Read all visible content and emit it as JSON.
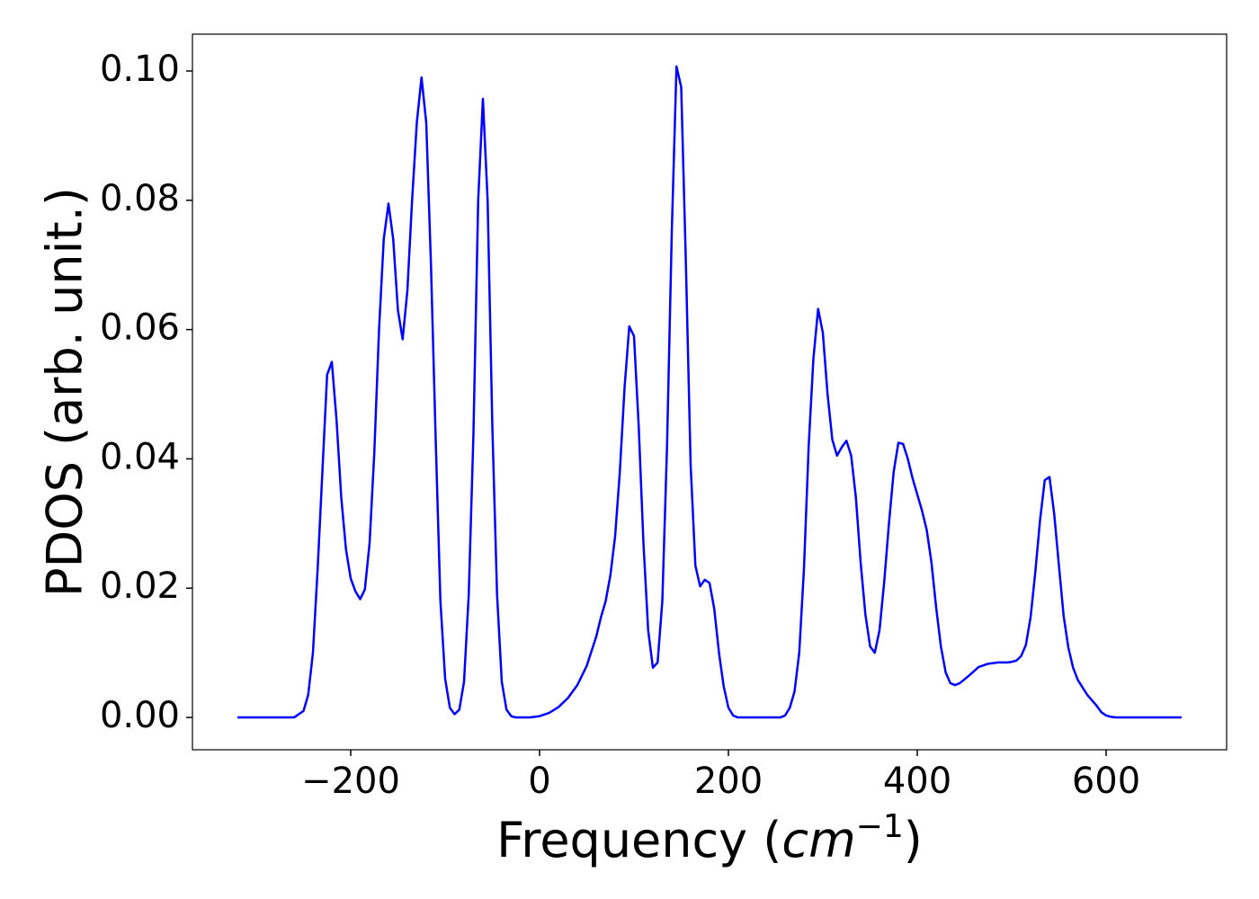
{
  "chart_data": {
    "type": "line",
    "ylabel": "PDOS (arb. unit.)",
    "xlabel": [
      "Frequency (",
      "cm",
      "−1",
      ")"
    ],
    "color": "#0000ff",
    "xlim": [
      -367.6,
      727.6
    ],
    "ylim": [
      -0.005,
      0.1057
    ],
    "xticks": [
      {
        "value": -200,
        "label": "−200"
      },
      0,
      200,
      400,
      600
    ],
    "yticks": [
      {
        "value": 0,
        "label": "0.00"
      },
      {
        "value": 0.02,
        "label": "0.02"
      },
      {
        "value": 0.04,
        "label": "0.04"
      },
      {
        "value": 0.06,
        "label": "0.06"
      },
      {
        "value": 0.08,
        "label": "0.08"
      },
      {
        "value": 0.1,
        "label": "0.10"
      }
    ],
    "x": [
      -320,
      -260,
      -255,
      -250,
      -245,
      -240,
      -235,
      -230,
      -225,
      -220,
      -215,
      -210,
      -205,
      -200,
      -195,
      -190,
      -185,
      -180,
      -175,
      -170,
      -165,
      -160,
      -155,
      -150,
      -145,
      -140,
      -135,
      -130,
      -125,
      -120,
      -115,
      -110,
      -105,
      -100,
      -95,
      -90,
      -85,
      -80,
      -75,
      -70,
      -65,
      -60,
      -55,
      -50,
      -45,
      -40,
      -35,
      -30,
      -25,
      -10,
      0,
      10,
      20,
      30,
      40,
      50,
      60,
      65,
      70,
      75,
      80,
      85,
      90,
      95,
      100,
      105,
      110,
      115,
      120,
      125,
      130,
      135,
      140,
      145,
      150,
      155,
      160,
      165,
      170,
      175,
      180,
      185,
      190,
      195,
      200,
      205,
      210,
      255,
      260,
      265,
      270,
      275,
      280,
      285,
      290,
      295,
      300,
      305,
      310,
      315,
      320,
      325,
      330,
      335,
      340,
      345,
      350,
      355,
      360,
      365,
      370,
      375,
      380,
      385,
      390,
      395,
      400,
      405,
      410,
      415,
      420,
      425,
      430,
      435,
      440,
      445,
      455,
      465,
      475,
      485,
      495,
      500,
      505,
      510,
      515,
      520,
      525,
      530,
      535,
      540,
      545,
      550,
      555,
      560,
      565,
      570,
      580,
      590,
      595,
      600,
      605,
      610,
      680
    ],
    "values": [
      0,
      0,
      0.0005,
      0.001,
      0.0035,
      0.01,
      0.023,
      0.038,
      0.053,
      0.055,
      0.046,
      0.034,
      0.026,
      0.0215,
      0.0195,
      0.0183,
      0.0198,
      0.027,
      0.041,
      0.06,
      0.074,
      0.0795,
      0.074,
      0.063,
      0.0585,
      0.066,
      0.08,
      0.092,
      0.099,
      0.092,
      0.07,
      0.043,
      0.018,
      0.006,
      0.0015,
      0.0005,
      0.0012,
      0.0055,
      0.019,
      0.044,
      0.08,
      0.0957,
      0.08,
      0.045,
      0.019,
      0.0055,
      0.0012,
      0.0002,
      0,
      0,
      0.0002,
      0.0007,
      0.0016,
      0.003,
      0.005,
      0.008,
      0.0125,
      0.0155,
      0.018,
      0.022,
      0.028,
      0.038,
      0.051,
      0.0605,
      0.059,
      0.045,
      0.027,
      0.0135,
      0.0077,
      0.0085,
      0.018,
      0.042,
      0.075,
      0.1007,
      0.0975,
      0.07,
      0.039,
      0.0235,
      0.0203,
      0.0213,
      0.0208,
      0.0168,
      0.01,
      0.0048,
      0.0015,
      0.0003,
      0,
      0,
      0.0003,
      0.0015,
      0.004,
      0.01,
      0.023,
      0.042,
      0.0555,
      0.0632,
      0.0595,
      0.05,
      0.043,
      0.0405,
      0.0418,
      0.0428,
      0.0405,
      0.034,
      0.024,
      0.016,
      0.011,
      0.01,
      0.0135,
      0.021,
      0.03,
      0.038,
      0.0425,
      0.0423,
      0.04,
      0.037,
      0.0345,
      0.032,
      0.029,
      0.024,
      0.017,
      0.011,
      0.007,
      0.0053,
      0.005,
      0.0053,
      0.0065,
      0.0078,
      0.0083,
      0.0085,
      0.0085,
      0.0086,
      0.0088,
      0.0095,
      0.0112,
      0.0155,
      0.0225,
      0.0305,
      0.0367,
      0.0372,
      0.0315,
      0.0235,
      0.0157,
      0.0108,
      0.0077,
      0.0058,
      0.0035,
      0.0018,
      0.0008,
      0.0003,
      0.0001,
      0,
      0
    ]
  }
}
